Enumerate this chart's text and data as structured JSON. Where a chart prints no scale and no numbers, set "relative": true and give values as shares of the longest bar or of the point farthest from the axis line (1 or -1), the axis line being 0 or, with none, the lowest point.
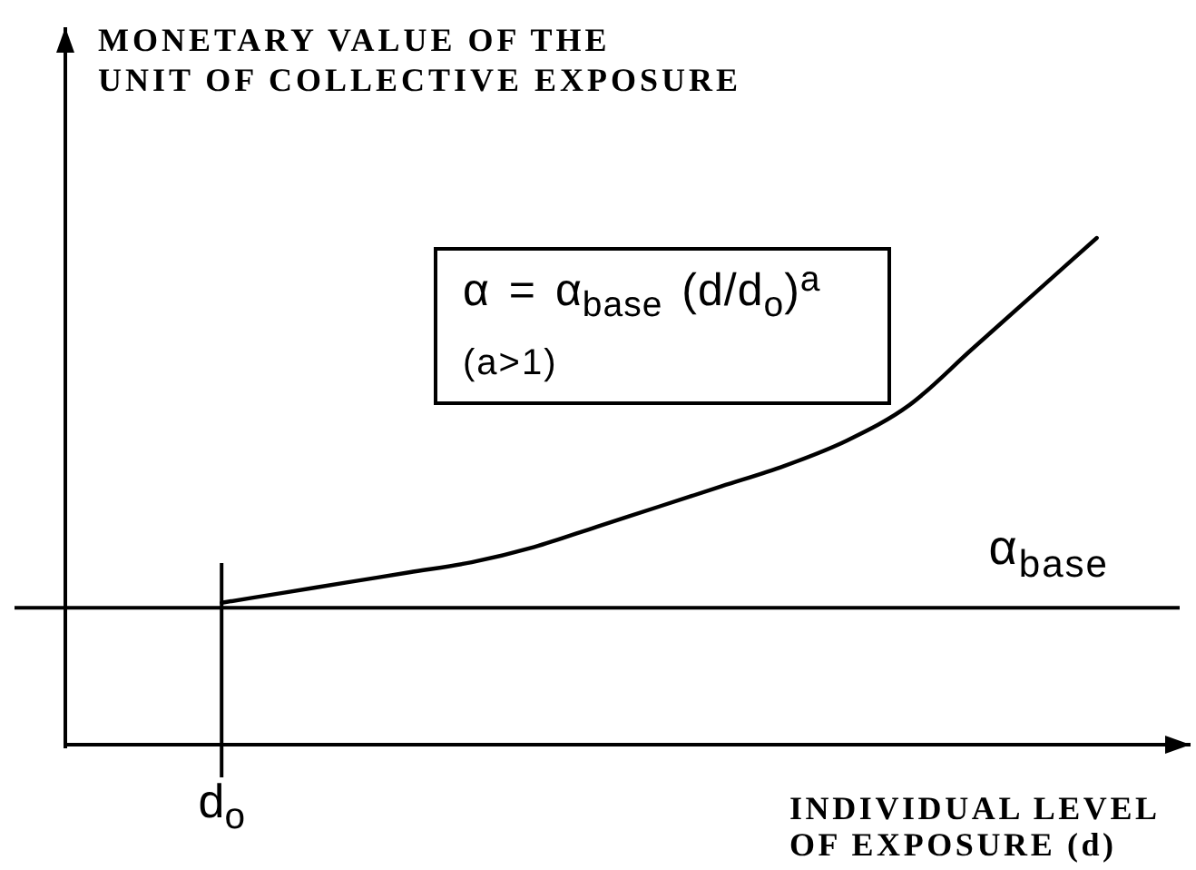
{
  "chart_data": {
    "type": "line",
    "relative": true,
    "ylabel": "MONETARY VALUE OF THE\nUNIT OF COLLECTIVE EXPOSURE",
    "xlabel": "INDIVIDUAL LEVEL\nOF EXPOSURE (d)",
    "categories": [
      null,
      null,
      null,
      null,
      null,
      null,
      null,
      null,
      null,
      null,
      null,
      null,
      null,
      null,
      null,
      null,
      null,
      null
    ],
    "series": [
      {
        "color": "#000000",
        "values": [
          null,
          null,
          0.28,
          0.3,
          0.32,
          0.34,
          0.36,
          0.39,
          0.43,
          0.47,
          0.51,
          0.55,
          0.6,
          0.67,
          0.78,
          0.89,
          1,
          null
        ]
      }
    ],
    "ref_lines": [
      {
        "axis": "y",
        "value": 0.27,
        "label": "α$_{base}$",
        "color": "#000000"
      }
    ],
    "annotations": [
      "α = α$_{base}$ (d/d$_{o}$)$^{a}$",
      "(a>1)",
      "d$_{o}$"
    ],
    "line_style": "solid"
  }
}
